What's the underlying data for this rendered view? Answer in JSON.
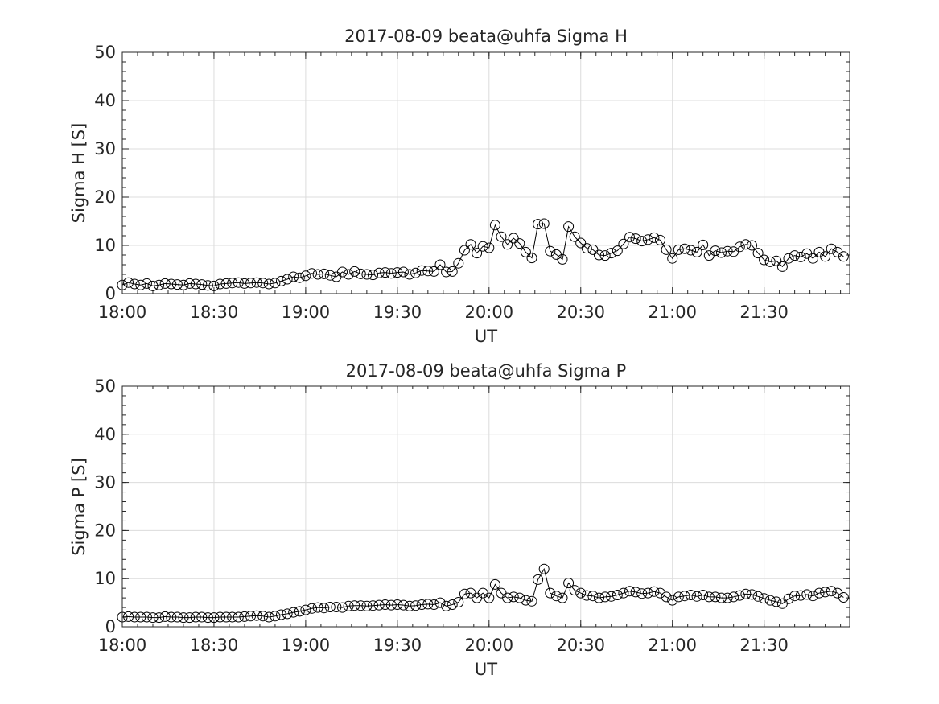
{
  "chart_data": [
    {
      "type": "line",
      "title": "2017-08-09  beata@uhfa Sigma H",
      "xlabel": "UT",
      "ylabel": "Sigma H [S]",
      "xlim": [
        "18:00",
        "21:58"
      ],
      "ylim": [
        0,
        50
      ],
      "xticks": [
        "18:00",
        "18:30",
        "19:00",
        "19:30",
        "20:00",
        "20:30",
        "21:00",
        "21:30"
      ],
      "yticks": [
        "0",
        "10",
        "20",
        "30",
        "40",
        "50"
      ],
      "grid": true,
      "marker": "open-circle",
      "line_color": "#000000",
      "start_time": "18:00",
      "interval_minutes": 2,
      "values": [
        1.8,
        2.3,
        2.0,
        1.8,
        2.1,
        1.6,
        1.8,
        2.1,
        2.0,
        1.9,
        1.8,
        2.1,
        2.0,
        1.9,
        1.7,
        1.6,
        2.0,
        2.1,
        2.2,
        2.3,
        2.1,
        2.2,
        2.3,
        2.2,
        2.0,
        2.2,
        2.6,
        3.0,
        3.5,
        3.3,
        3.7,
        4.2,
        4.0,
        4.1,
        3.8,
        3.5,
        4.5,
        4.0,
        4.6,
        4.1,
        4.0,
        3.9,
        4.3,
        4.4,
        4.2,
        4.4,
        4.5,
        4.0,
        4.3,
        4.8,
        4.7,
        4.6,
        6.0,
        4.5,
        4.6,
        6.3,
        9.0,
        10.2,
        8.4,
        9.8,
        9.5,
        14.2,
        11.8,
        10.2,
        11.5,
        10.4,
        8.6,
        7.4,
        14.4,
        14.5,
        8.8,
        8.1,
        7.1,
        13.9,
        11.8,
        10.5,
        9.4,
        9.1,
        8.0,
        7.9,
        8.4,
        8.9,
        10.3,
        11.7,
        11.4,
        10.9,
        11.2,
        11.6,
        11.1,
        9.1,
        7.3,
        9.1,
        9.3,
        9.0,
        8.6,
        10.1,
        7.9,
        8.9,
        8.5,
        8.8,
        8.7,
        9.7,
        10.2,
        10.0,
        8.4,
        7.0,
        6.6,
        6.8,
        5.6,
        7.3,
        7.9,
        7.6,
        8.3,
        7.3,
        8.6,
        7.7,
        9.3,
        8.6,
        7.7
      ]
    },
    {
      "type": "line",
      "title": "2017-08-09  beata@uhfa Sigma P",
      "xlabel": "UT",
      "ylabel": "Sigma P [S]",
      "xlim": [
        "18:00",
        "21:58"
      ],
      "ylim": [
        0,
        50
      ],
      "xticks": [
        "18:00",
        "18:30",
        "19:00",
        "19:30",
        "20:00",
        "20:30",
        "21:00",
        "21:30"
      ],
      "yticks": [
        "0",
        "10",
        "20",
        "30",
        "40",
        "50"
      ],
      "grid": true,
      "marker": "open-circle",
      "line_color": "#000000",
      "start_time": "18:00",
      "interval_minutes": 2,
      "values": [
        2.0,
        2.1,
        2.0,
        2.0,
        2.0,
        1.9,
        1.9,
        2.1,
        2.0,
        2.0,
        1.9,
        1.9,
        2.0,
        2.0,
        1.9,
        1.9,
        2.0,
        2.0,
        2.0,
        2.0,
        2.1,
        2.2,
        2.3,
        2.2,
        2.0,
        2.2,
        2.5,
        2.7,
        3.0,
        3.2,
        3.5,
        3.8,
        4.0,
        3.9,
        4.1,
        4.1,
        4.0,
        4.3,
        4.4,
        4.4,
        4.3,
        4.4,
        4.5,
        4.6,
        4.5,
        4.6,
        4.5,
        4.3,
        4.4,
        4.6,
        4.7,
        4.6,
        5.0,
        4.3,
        4.6,
        5.1,
        6.8,
        7.0,
        6.0,
        7.0,
        6.0,
        8.8,
        7.0,
        6.0,
        6.2,
        6.0,
        5.5,
        5.3,
        9.8,
        12.0,
        7.0,
        6.4,
        6.0,
        9.1,
        7.6,
        7.0,
        6.5,
        6.4,
        6.0,
        6.2,
        6.3,
        6.6,
        7.0,
        7.4,
        7.2,
        6.9,
        7.0,
        7.3,
        7.0,
        6.2,
        5.5,
        6.2,
        6.4,
        6.6,
        6.3,
        6.6,
        6.2,
        6.2,
        6.0,
        6.0,
        6.2,
        6.5,
        6.8,
        6.7,
        6.3,
        5.9,
        5.5,
        5.2,
        4.8,
        5.8,
        6.4,
        6.5,
        6.7,
        6.4,
        7.0,
        7.2,
        7.4,
        7.0,
        6.1
      ]
    }
  ]
}
